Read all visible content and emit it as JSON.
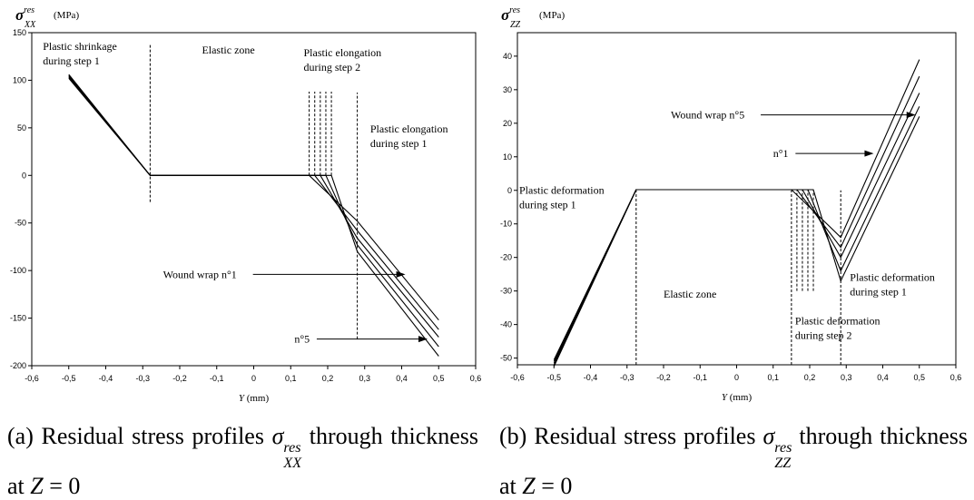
{
  "chart_data": [
    {
      "type": "line",
      "panel_label": "(a)",
      "ylabel_symbol": "σ",
      "ylabel_superscript": "res",
      "ylabel_subscript": "XX",
      "ylabel_unit": "(MPa)",
      "xlabel_var": "Y",
      "xlabel_unit": "(mm)",
      "xlim": [
        -0.6,
        0.6
      ],
      "ylim": [
        -200,
        150
      ],
      "x_ticks": [
        "-0,6",
        "-0,5",
        "-0,4",
        "-0,3",
        "-0,2",
        "-0,1",
        "0",
        "0,1",
        "0,2",
        "0,3",
        "0,4",
        "0,5",
        "0,6"
      ],
      "y_ticks": [
        "150",
        "100",
        "50",
        "0",
        "-50",
        "-100",
        "-150",
        "-200"
      ],
      "grid": false,
      "series": [
        {
          "name": "n°1",
          "x": [
            -0.5,
            -0.28,
            0.15,
            0.28,
            0.5
          ],
          "y": [
            106,
            0,
            0,
            -48,
            -152
          ]
        },
        {
          "x": [
            -0.5,
            -0.28,
            0.165,
            0.28,
            0.5
          ],
          "y": [
            105,
            0,
            0,
            -58,
            -162
          ]
        },
        {
          "x": [
            -0.5,
            -0.28,
            0.18,
            0.28,
            0.5
          ],
          "y": [
            104,
            0,
            0,
            -66,
            -170
          ]
        },
        {
          "x": [
            -0.5,
            -0.28,
            0.195,
            0.28,
            0.5
          ],
          "y": [
            103,
            0,
            0,
            -73,
            -180
          ]
        },
        {
          "name": "n°5",
          "x": [
            -0.5,
            -0.28,
            0.21,
            0.28,
            0.5
          ],
          "y": [
            102,
            0,
            0,
            -80,
            -190
          ]
        }
      ],
      "reference_lines": [
        {
          "x": -0.28,
          "y_from": -28,
          "y_to": 138
        },
        {
          "x": 0.15,
          "y_from": 0,
          "y_to": 88
        },
        {
          "x": 0.165,
          "y_from": 0,
          "y_to": 88
        },
        {
          "x": 0.18,
          "y_from": 0,
          "y_to": 88
        },
        {
          "x": 0.195,
          "y_from": 0,
          "y_to": 88
        },
        {
          "x": 0.21,
          "y_from": 0,
          "y_to": 88
        },
        {
          "x": 0.28,
          "y_from": -172,
          "y_to": 87
        }
      ],
      "annotations": [
        {
          "lines": [
            "Plastic shrinkage",
            "during step 1"
          ],
          "x": -0.57,
          "y": 132
        },
        {
          "lines": [
            "Elastic zone"
          ],
          "x": -0.14,
          "y": 128
        },
        {
          "lines": [
            "Plastic elongation",
            "during step 2"
          ],
          "x": 0.135,
          "y": 125
        },
        {
          "lines": [
            "Plastic elongation",
            "during step 1"
          ],
          "x": 0.315,
          "y": 45
        }
      ],
      "arrows": [
        {
          "label": "Wound wrap  n°1",
          "label_x": -0.245,
          "y": -104,
          "to_x": 0.41
        },
        {
          "label": "n°5",
          "label_x": 0.11,
          "y": -172,
          "to_x": 0.47
        }
      ]
    },
    {
      "type": "line",
      "panel_label": "(b)",
      "ylabel_symbol": "σ",
      "ylabel_superscript": "res",
      "ylabel_subscript": "ZZ",
      "ylabel_unit": "(MPa)",
      "xlabel_var": "Y",
      "xlabel_unit": "(mm)",
      "xlim": [
        -0.6,
        0.6
      ],
      "ylim": [
        -52,
        47
      ],
      "x_ticks": [
        "-0,6",
        "-0,5",
        "-0,4",
        "-0,3",
        "-0,2",
        "-0,1",
        "0",
        "0,1",
        "0,2",
        "0,3",
        "0,4",
        "0,5",
        "0,6"
      ],
      "y_ticks": [
        "40",
        "30",
        "20",
        "10",
        "0",
        "-10",
        "-20",
        "-30",
        "-40",
        "-50"
      ],
      "grid": false,
      "series": [
        {
          "name": "n°1",
          "x": [
            -0.5,
            -0.275,
            0.15,
            0.285,
            0.5
          ],
          "y": [
            -50.5,
            0.2,
            0.2,
            -14,
            39
          ]
        },
        {
          "x": [
            -0.5,
            -0.275,
            0.165,
            0.285,
            0.5
          ],
          "y": [
            -51,
            0.2,
            0.2,
            -17,
            34
          ]
        },
        {
          "x": [
            -0.5,
            -0.275,
            0.18,
            0.285,
            0.5
          ],
          "y": [
            -51.5,
            0.2,
            0.2,
            -20,
            29
          ]
        },
        {
          "x": [
            -0.5,
            -0.275,
            0.195,
            0.285,
            0.5
          ],
          "y": [
            -52,
            0.2,
            0.2,
            -24,
            25
          ]
        },
        {
          "name": "n°5",
          "x": [
            -0.5,
            -0.275,
            0.21,
            0.285,
            0.5
          ],
          "y": [
            -52.5,
            0.2,
            0.2,
            -27,
            22
          ]
        }
      ],
      "reference_lines": [
        {
          "x": -0.275,
          "y_from": -52,
          "y_to": 0
        },
        {
          "x": 0.15,
          "y_from": -52,
          "y_to": 0
        },
        {
          "x": 0.165,
          "y_from": -30,
          "y_to": 0
        },
        {
          "x": 0.18,
          "y_from": -30,
          "y_to": 0
        },
        {
          "x": 0.195,
          "y_from": -30,
          "y_to": 0
        },
        {
          "x": 0.21,
          "y_from": -30,
          "y_to": 0
        },
        {
          "x": 0.285,
          "y_from": -52,
          "y_to": 0
        }
      ],
      "annotations": [
        {
          "lines": [
            "Plastic deformation",
            "during step 1"
          ],
          "x": -0.595,
          "y": -1
        },
        {
          "lines": [
            "Elastic zone"
          ],
          "x": -0.2,
          "y": -32
        },
        {
          "lines": [
            "Plastic deformation",
            "during step 2"
          ],
          "x": 0.16,
          "y": -40
        },
        {
          "lines": [
            "Plastic deformation",
            "during step 1"
          ],
          "x": 0.31,
          "y": -27
        }
      ],
      "arrows": [
        {
          "label": "Wound wrap  n°5",
          "label_x": -0.18,
          "y": 22.5,
          "to_x": 0.49
        },
        {
          "label": "n°1",
          "label_x": 0.1,
          "y": 11,
          "to_x": 0.375
        }
      ]
    }
  ],
  "captions": {
    "a_label": "(a)",
    "a_text_1": "Residual stress profiles",
    "a_text_2": "through thickness at",
    "a_symbol": "σ",
    "a_sup": "res",
    "a_sub": "XX",
    "a_cond_var": "Z",
    "a_cond_val": "= 0",
    "b_label": "(b)",
    "b_text_1": "Residual stress profiles",
    "b_text_2": "through thickness at",
    "b_symbol": "σ",
    "b_sup": "res",
    "b_sub": "ZZ",
    "b_cond_var": "Z",
    "b_cond_val": "= 0"
  }
}
